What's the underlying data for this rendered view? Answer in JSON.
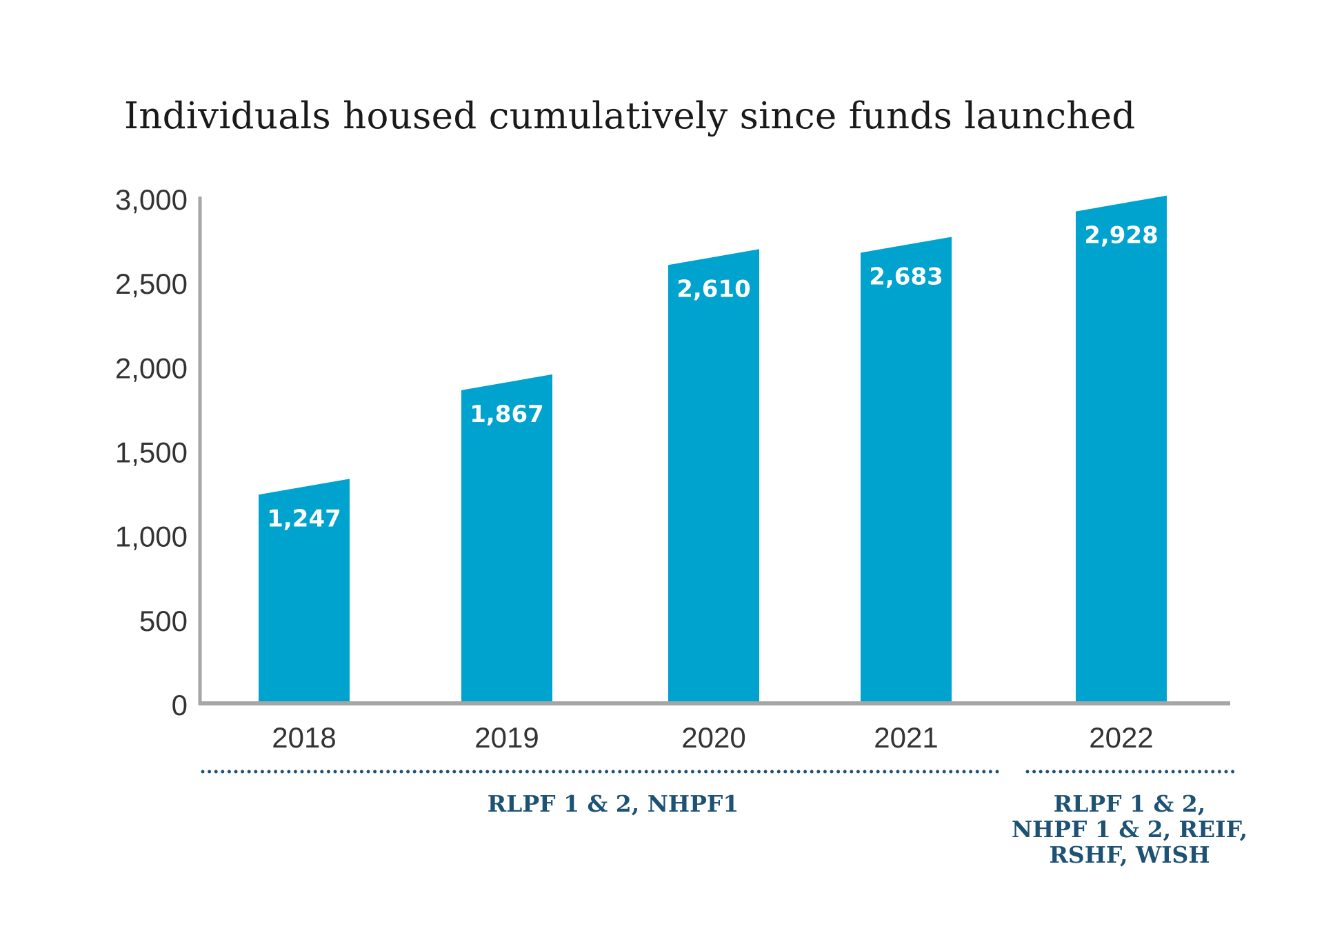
{
  "chart_data": {
    "type": "bar",
    "title": "Individuals housed cumulatively since funds launched",
    "categories": [
      "2018",
      "2019",
      "2020",
      "2021",
      "2022"
    ],
    "values": [
      1247,
      1867,
      2610,
      2683,
      2928
    ],
    "value_labels": [
      "1,247",
      "1,867",
      "2,610",
      "2,683",
      "2,928"
    ],
    "y_ticks": [
      0,
      500,
      1000,
      1500,
      2000,
      2500,
      3000
    ],
    "y_tick_labels": [
      "0",
      "500",
      "1,000",
      "1,500",
      "2,000",
      "2,500",
      "3,000"
    ],
    "ylim": [
      0,
      3000
    ],
    "xlabel": "",
    "ylabel": "",
    "grid": false,
    "bar_color": "#00A3CE",
    "axis_color": "#A6A6A6",
    "fund_groups": [
      {
        "categories": [
          "2018",
          "2019",
          "2020",
          "2021"
        ],
        "lines": [
          "RLPF 1 & 2, NHPF1"
        ]
      },
      {
        "categories": [
          "2022"
        ],
        "lines": [
          "RLPF 1 & 2,",
          "NHPF 1 & 2, REIF,",
          "RSHF, WISH"
        ]
      }
    ],
    "fund_color": "#1D5275"
  }
}
